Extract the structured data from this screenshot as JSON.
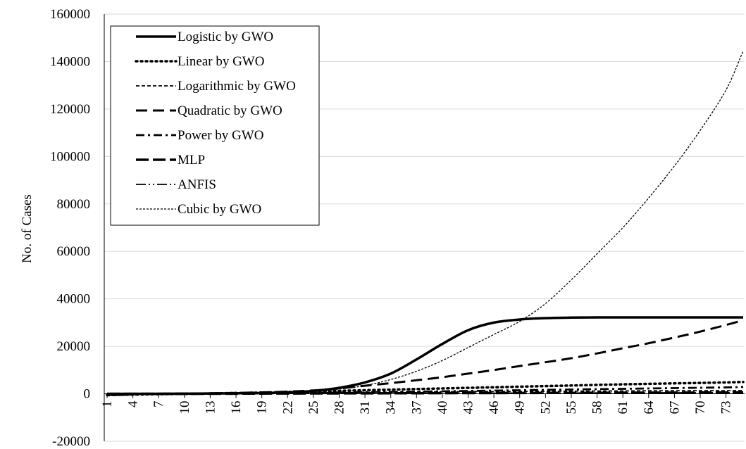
{
  "chart_data": {
    "type": "line",
    "title": "",
    "xlabel": "",
    "ylabel": "No. of Cases",
    "ylim": [
      -20000,
      160000
    ],
    "y_ticks": [
      -20000,
      0,
      20000,
      40000,
      60000,
      80000,
      100000,
      120000,
      140000,
      160000
    ],
    "y_tick_labels": [
      "-20000",
      "0",
      "20000",
      "40000",
      "60000",
      "80000",
      "100000",
      "120000",
      "140000",
      "160000"
    ],
    "x_range": [
      1,
      75
    ],
    "x_ticks": [
      1,
      4,
      7,
      10,
      13,
      16,
      19,
      22,
      25,
      28,
      31,
      34,
      37,
      40,
      43,
      46,
      49,
      52,
      55,
      58,
      61,
      64,
      67,
      70,
      73
    ],
    "x_tick_labels": [
      "1",
      "4",
      "7",
      "10",
      "13",
      "16",
      "19",
      "22",
      "25",
      "28",
      "31",
      "34",
      "37",
      "40",
      "43",
      "46",
      "49",
      "52",
      "55",
      "58",
      "61",
      "64",
      "67",
      "70",
      "73"
    ],
    "grid": "horizontal",
    "legend_position": "top-left",
    "series": [
      {
        "name": "Logistic by GWO",
        "style": "solid-thick",
        "x": [
          1,
          10,
          19,
          22,
          25,
          28,
          31,
          34,
          37,
          40,
          43,
          46,
          49,
          52,
          55,
          58,
          61,
          64,
          67,
          70,
          73,
          75
        ],
        "y": [
          0,
          50,
          300,
          600,
          1200,
          2500,
          4800,
          8500,
          14500,
          21000,
          26800,
          30000,
          31300,
          31900,
          32100,
          32200,
          32200,
          32200,
          32200,
          32200,
          32200,
          32200
        ]
      },
      {
        "name": "Linear by GWO",
        "style": "dotted",
        "x": [
          1,
          10,
          19,
          25,
          31,
          37,
          43,
          49,
          55,
          61,
          67,
          73,
          75
        ],
        "y": [
          -500,
          0,
          500,
          1000,
          1500,
          2000,
          2500,
          3000,
          3500,
          4000,
          4400,
          4800,
          5000
        ]
      },
      {
        "name": "Logarithmic by GWO",
        "style": "short-dash",
        "x": [
          1,
          10,
          19,
          25,
          31,
          37,
          43,
          49,
          55,
          61,
          67,
          73,
          75
        ],
        "y": [
          -800,
          0,
          200,
          400,
          600,
          800,
          900,
          1000,
          1100,
          1200,
          1300,
          1300,
          1400
        ]
      },
      {
        "name": "Quadratic by GWO",
        "style": "long-dash",
        "x": [
          1,
          10,
          19,
          25,
          28,
          31,
          34,
          37,
          40,
          43,
          46,
          49,
          52,
          55,
          58,
          61,
          64,
          67,
          70,
          73,
          75
        ],
        "y": [
          0,
          100,
          600,
          1400,
          2300,
          3400,
          4500,
          5700,
          7000,
          8500,
          10000,
          11700,
          13300,
          15000,
          17000,
          19200,
          21300,
          23700,
          26200,
          29000,
          31000
        ]
      },
      {
        "name": "Power by GWO",
        "style": "dash-dot",
        "x": [
          1,
          10,
          19,
          25,
          31,
          37,
          43,
          49,
          55,
          61,
          67,
          73,
          75
        ],
        "y": [
          -300,
          0,
          200,
          400,
          700,
          900,
          1200,
          1500,
          1800,
          2100,
          2400,
          2700,
          2900
        ]
      },
      {
        "name": "MLP",
        "style": "dash-thick",
        "x": [
          1,
          10,
          19,
          25,
          31,
          37,
          43,
          49,
          55,
          61,
          67,
          73,
          75
        ],
        "y": [
          0,
          0,
          100,
          150,
          200,
          250,
          300,
          350,
          400,
          450,
          500,
          550,
          600
        ]
      },
      {
        "name": "ANFIS",
        "style": "dash-dot-dot",
        "x": [
          1,
          10,
          19,
          25,
          31,
          37,
          43,
          49,
          55,
          61,
          67,
          73,
          75
        ],
        "y": [
          0,
          0,
          50,
          100,
          150,
          200,
          250,
          300,
          350,
          400,
          450,
          500,
          550
        ]
      },
      {
        "name": "Cubic by GWO",
        "style": "fine-dash",
        "x": [
          1,
          10,
          19,
          25,
          28,
          31,
          34,
          37,
          40,
          43,
          46,
          49,
          52,
          55,
          58,
          61,
          64,
          67,
          70,
          73,
          75
        ],
        "y": [
          0,
          100,
          600,
          1300,
          2000,
          3500,
          6000,
          9500,
          14000,
          19500,
          25000,
          30500,
          38000,
          48000,
          59000,
          70000,
          82500,
          96000,
          111000,
          128000,
          144500
        ]
      }
    ]
  }
}
